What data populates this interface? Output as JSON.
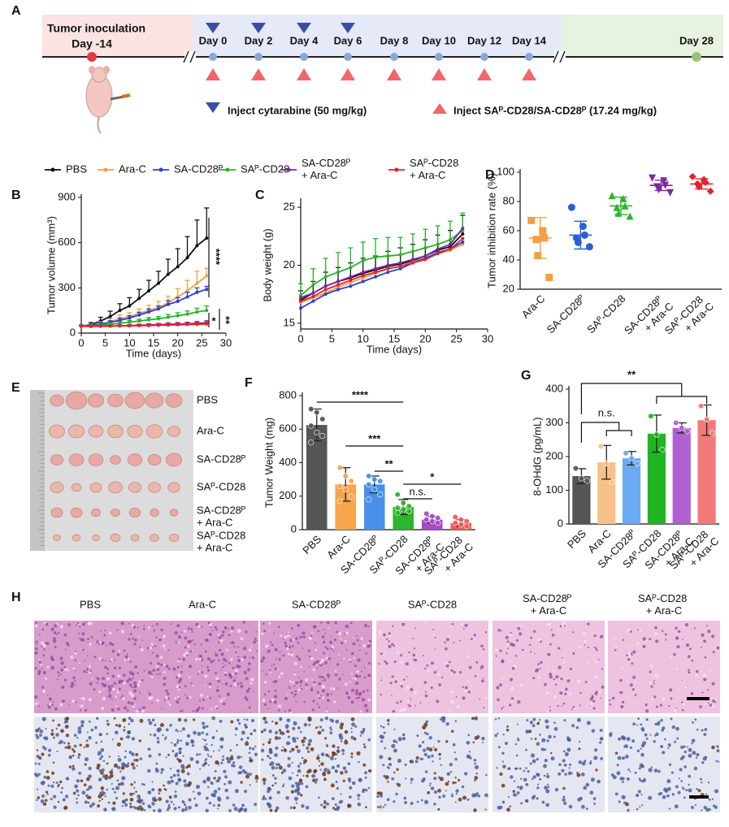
{
  "timeline": {
    "panel": "A",
    "inoculation": "Tumor inoculation",
    "start": "Day -14",
    "days": [
      "Day 0",
      "Day 2",
      "Day 4",
      "Day 6",
      "Day 8",
      "Day 10",
      "Day 12",
      "Day 14"
    ],
    "end": "Day 28",
    "cytarabine": "Inject cytarabine (50 mg/kg)",
    "conjugate": "Inject SAᴾ-CD28/SA-CD28ᴾ (17.24 mg/kg)"
  },
  "chart_data": [
    {
      "panel": "B",
      "type": "line",
      "xlabel": "Time (days)",
      "ylabel": "Tumor volume (mm³)",
      "x": [
        0,
        2,
        4,
        6,
        8,
        10,
        12,
        14,
        16,
        18,
        20,
        22,
        24,
        26
      ],
      "xlim": [
        0,
        30
      ],
      "xticks": [
        0,
        5,
        10,
        15,
        20,
        25,
        30
      ],
      "ylim": [
        0,
        900
      ],
      "yticks": [
        0,
        300,
        600,
        900
      ],
      "series": [
        {
          "name": "PBS",
          "color": "#111111",
          "values": [
            45,
            55,
            80,
            110,
            150,
            180,
            230,
            280,
            330,
            390,
            440,
            500,
            580,
            630
          ],
          "errors": [
            10,
            15,
            25,
            35,
            45,
            55,
            60,
            70,
            80,
            100,
            120,
            140,
            170,
            200
          ]
        },
        {
          "name": "Ara-C",
          "color": "#f5a040",
          "values": [
            45,
            50,
            60,
            75,
            95,
            110,
            130,
            150,
            170,
            200,
            240,
            280,
            330,
            380
          ],
          "errors": [
            8,
            10,
            15,
            20,
            25,
            25,
            30,
            35,
            40,
            45,
            55,
            70,
            80,
            50
          ]
        },
        {
          "name": "SA-CD28ᴾ",
          "color": "#2a3fd8",
          "values": [
            45,
            50,
            60,
            70,
            85,
            100,
            120,
            140,
            160,
            190,
            210,
            240,
            270,
            290
          ],
          "errors": [
            5,
            8,
            10,
            12,
            15,
            15,
            18,
            20,
            20,
            25,
            25,
            30,
            30,
            20
          ]
        },
        {
          "name": "SAᴾ-CD28",
          "color": "#22b522",
          "values": [
            45,
            48,
            52,
            57,
            65,
            72,
            80,
            88,
            95,
            105,
            115,
            125,
            140,
            150
          ],
          "errors": [
            5,
            6,
            8,
            10,
            10,
            12,
            12,
            15,
            15,
            18,
            20,
            22,
            25,
            30
          ]
        },
        {
          "name": "SA-CD28ᴾ + Ara-C",
          "color": "#7b2a9b",
          "values": [
            45,
            45,
            46,
            47,
            48,
            50,
            52,
            54,
            56,
            58,
            60,
            62,
            65,
            68
          ],
          "errors": [
            3,
            4,
            5,
            5,
            6,
            6,
            7,
            8,
            8,
            9,
            10,
            10,
            12,
            14
          ]
        },
        {
          "name": "SAᴾ-CD28 + Ara-C",
          "color": "#e3202c",
          "values": [
            45,
            44,
            45,
            46,
            47,
            48,
            49,
            50,
            52,
            53,
            55,
            57,
            58,
            60
          ],
          "errors": [
            3,
            3,
            4,
            4,
            5,
            5,
            6,
            6,
            7,
            7,
            8,
            8,
            10,
            12
          ]
        }
      ],
      "annotations": [
        "****",
        "*",
        "**"
      ]
    },
    {
      "panel": "C",
      "type": "line",
      "xlabel": "Time (days)",
      "ylabel": "Body weight (g)",
      "x": [
        0,
        2,
        4,
        6,
        8,
        10,
        12,
        14,
        16,
        18,
        20,
        22,
        24,
        26
      ],
      "xlim": [
        0,
        30
      ],
      "xticks": [
        0,
        5,
        10,
        15,
        20,
        25,
        30
      ],
      "ylim": [
        14.5,
        25.5
      ],
      "yticks": [
        15,
        20,
        25
      ],
      "series": [
        {
          "color": "#111111",
          "values": [
            17.0,
            17.6,
            18.2,
            18.6,
            18.9,
            19.3,
            19.6,
            19.9,
            20.1,
            20.4,
            20.8,
            21.3,
            21.6,
            22.7
          ],
          "errors": [
            0.8,
            1.0,
            1.2,
            1.2,
            1.3,
            1.3,
            1.2,
            1.3,
            1.4,
            1.4,
            1.4,
            1.3,
            1.4,
            1.6
          ]
        },
        {
          "color": "#f5a040",
          "values": [
            16.8,
            17.2,
            17.6,
            18.1,
            18.5,
            18.9,
            19.3,
            19.7,
            19.9,
            20.3,
            20.6,
            21.0,
            21.3,
            21.8
          ]
        },
        {
          "color": "#2a3fd8",
          "values": [
            16.3,
            16.9,
            17.5,
            17.9,
            18.2,
            18.6,
            19.0,
            19.4,
            19.7,
            20.2,
            20.6,
            21.1,
            21.4,
            22.0
          ]
        },
        {
          "color": "#22b522",
          "values": [
            17.4,
            18.3,
            19.0,
            19.4,
            19.8,
            20.4,
            20.7,
            20.8,
            20.9,
            21.2,
            21.5,
            21.8,
            22.2,
            23.0
          ],
          "errors": [
            1.0,
            1.4,
            1.6,
            1.7,
            1.7,
            1.6,
            1.6,
            1.6,
            1.5,
            1.5,
            1.6,
            1.6,
            1.6,
            1.5
          ]
        },
        {
          "color": "#7b2a9b",
          "values": [
            17.2,
            17.6,
            18.2,
            18.6,
            19.0,
            19.4,
            19.7,
            20.0,
            20.2,
            20.5,
            20.8,
            21.4,
            21.8,
            23.2
          ]
        },
        {
          "color": "#e3202c",
          "values": [
            16.9,
            17.3,
            17.9,
            18.3,
            18.7,
            19.1,
            19.4,
            19.7,
            19.9,
            20.2,
            20.5,
            21.0,
            21.4,
            22.3
          ]
        }
      ]
    },
    {
      "panel": "D",
      "type": "scatter",
      "ylabel": "Tumor inhibition rate (%)",
      "ylim": [
        20,
        100
      ],
      "yticks": [
        20,
        40,
        60,
        80,
        100
      ],
      "series": [
        {
          "name": "Ara-C",
          "color": "#f5a040",
          "marker": "square",
          "values": [
            67,
            60,
            55,
            54,
            43,
            28
          ],
          "mean": 55,
          "sd": 14
        },
        {
          "name": "SA-CD28ᴾ",
          "color": "#2a5fd8",
          "marker": "circle",
          "values": [
            76,
            63,
            57,
            55,
            52,
            49
          ],
          "mean": 57,
          "sd": 9.5
        },
        {
          "name": "SAᴾ-CD28",
          "color": "#2cb52c",
          "marker": "triangle",
          "values": [
            84,
            82,
            77,
            76,
            72,
            70
          ],
          "mean": 77,
          "sd": 6
        },
        {
          "name": "SA-CD28ᴾ + Ara-C",
          "color": "#7b2a9b",
          "marker": "triangle-down",
          "values": [
            96,
            94,
            91,
            90,
            88,
            86
          ],
          "mean": 91,
          "sd": 3.5
        },
        {
          "name": "SAᴾ-CD28 + Ara-C",
          "color": "#e3202c",
          "marker": "diamond",
          "values": [
            97,
            95,
            93,
            92,
            90,
            87
          ],
          "mean": 92,
          "sd": 3.5
        }
      ]
    },
    {
      "panel": "F",
      "type": "bar",
      "ylabel": "Tumor Weight (mg)",
      "ylim": [
        0,
        800
      ],
      "yticks": [
        0,
        200,
        400,
        600,
        800
      ],
      "categories": [
        "PBS",
        "Ara-C",
        "SA-CD28ᴾ",
        "SAᴾ-CD28",
        "SA-CD28ᴾ + Ara-C",
        "SAᴾ-CD28 + Ara-C"
      ],
      "colors": [
        "#555555",
        "#f7a54a",
        "#4a90e8",
        "#2db52d",
        "#a64bc8",
        "#f25b5b"
      ],
      "values": [
        625,
        270,
        270,
        135,
        60,
        40
      ],
      "errors": [
        95,
        100,
        50,
        45,
        20,
        20
      ],
      "points": [
        [
          720,
          700,
          660,
          620,
          580,
          560,
          520
        ],
        [
          370,
          320,
          290,
          260,
          240,
          200,
          170
        ],
        [
          320,
          300,
          290,
          270,
          240,
          210,
          180
        ],
        [
          210,
          160,
          140,
          130,
          120,
          110,
          100
        ],
        [
          95,
          80,
          70,
          60,
          50,
          40
        ],
        [
          75,
          60,
          50,
          40,
          30,
          20
        ]
      ],
      "annotations": [
        "****",
        "***",
        "**",
        "*",
        "n.s."
      ]
    },
    {
      "panel": "G",
      "type": "bar",
      "ylabel": "8-OHdG (pg/mL)",
      "ylim": [
        0,
        400
      ],
      "yticks": [
        0,
        100,
        200,
        300,
        400
      ],
      "categories": [
        "PBS",
        "Ara-C",
        "SA-CD28ᴾ",
        "SAᴾ-CD28",
        "SA-CD28ᴾ + Ara-C",
        "SAᴾ-CD28 + Ara-C"
      ],
      "colors": [
        "#555555",
        "#f9c08a",
        "#6aaaf0",
        "#22b522",
        "#b060d0",
        "#f27a7a"
      ],
      "values": [
        142,
        183,
        195,
        268,
        285,
        308
      ],
      "errors": [
        22,
        50,
        20,
        55,
        15,
        45
      ],
      "points": [
        [
          165,
          135,
          128
        ],
        [
          230,
          180,
          125
        ],
        [
          210,
          195,
          180
        ],
        [
          320,
          265,
          220
        ],
        [
          300,
          285,
          275
        ],
        [
          350,
          310,
          270
        ]
      ],
      "annotations": [
        "n.s.",
        "**"
      ]
    }
  ],
  "photo": {
    "panel": "E",
    "rows": [
      "PBS",
      "Ara-C",
      "SA-CD28ᴾ",
      "SAᴾ-CD28",
      "SA-CD28ᴾ + Ara-C",
      "SAᴾ-CD28 + Ara-C"
    ]
  },
  "histology": {
    "panel": "H",
    "columns": [
      "PBS",
      "Ara-C",
      "SA-CD28ᴾ",
      "SAᴾ-CD28",
      "SA-CD28ᴾ + Ara-C",
      "SAᴾ-CD28 + Ara-C"
    ]
  }
}
